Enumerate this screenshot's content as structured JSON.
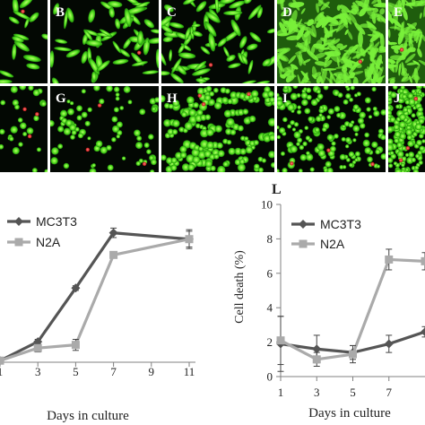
{
  "panels": [
    {
      "letter": "",
      "row": 0,
      "col": 0,
      "kind": "spindle",
      "density": 0.25
    },
    {
      "letter": "B",
      "row": 0,
      "col": 1,
      "kind": "spindle",
      "density": 0.55
    },
    {
      "letter": "C",
      "row": 0,
      "col": 2,
      "kind": "spindle",
      "density": 0.7
    },
    {
      "letter": "D",
      "row": 0,
      "col": 3,
      "kind": "confluent",
      "density": 0.95
    },
    {
      "letter": "E",
      "row": 0,
      "col": 4,
      "kind": "confluent",
      "density": 0.95
    },
    {
      "letter": "",
      "row": 1,
      "col": 0,
      "kind": "round",
      "density": 0.25
    },
    {
      "letter": "G",
      "row": 1,
      "col": 1,
      "kind": "round",
      "density": 0.4
    },
    {
      "letter": "H",
      "row": 1,
      "col": 2,
      "kind": "cluster",
      "density": 0.6
    },
    {
      "letter": "I",
      "row": 1,
      "col": 3,
      "kind": "round",
      "density": 0.95
    },
    {
      "letter": "J",
      "row": 1,
      "col": 4,
      "kind": "dense",
      "density": 1.0
    }
  ],
  "chart_data": [
    {
      "type": "line",
      "panel_letter": "",
      "title": "",
      "xlabel": "Days in culture",
      "ylabel": "",
      "x": [
        1,
        3,
        5,
        7,
        11
      ],
      "xticks": [
        "1",
        "3",
        "5",
        "7",
        "9",
        "11"
      ],
      "xlim": [
        1,
        11
      ],
      "ylim": [
        0,
        10
      ],
      "grid": false,
      "legend": "upper-left",
      "series": [
        {
          "name": "MC3T3",
          "color": "#555555",
          "marker": "diamond",
          "values": [
            0.1,
            1.3,
            4.7,
            8.2,
            7.8
          ],
          "errors": [
            0.1,
            0.15,
            0.15,
            0.3,
            0.6
          ]
        },
        {
          "name": "N2A",
          "color": "#aaaaaa",
          "marker": "square",
          "values": [
            0.1,
            0.9,
            1.1,
            6.8,
            7.8
          ],
          "errors": [
            0.1,
            0.25,
            0.35,
            0.15,
            0.5
          ]
        }
      ]
    },
    {
      "type": "line",
      "panel_letter": "L",
      "title": "",
      "xlabel": "Days in culture",
      "ylabel": "Cell death (%)",
      "x": [
        1,
        3,
        5,
        7,
        9
      ],
      "xticks": [
        "1",
        "3",
        "5",
        "7"
      ],
      "yticks": [
        "0",
        "2",
        "4",
        "6",
        "8",
        "10"
      ],
      "xlim": [
        1,
        9
      ],
      "ylim": [
        0,
        10
      ],
      "grid": false,
      "legend": "upper-left",
      "series": [
        {
          "name": "MC3T3",
          "color": "#555555",
          "marker": "diamond",
          "values": [
            1.9,
            1.6,
            1.4,
            1.9,
            2.6
          ],
          "errors": [
            1.6,
            0.8,
            0.4,
            0.5,
            0.3
          ]
        },
        {
          "name": "N2A",
          "color": "#aaaaaa",
          "marker": "square",
          "values": [
            2.1,
            1.0,
            1.3,
            6.8,
            6.7
          ],
          "errors": [
            1.4,
            0.4,
            0.5,
            0.6,
            0.5
          ]
        }
      ]
    }
  ]
}
